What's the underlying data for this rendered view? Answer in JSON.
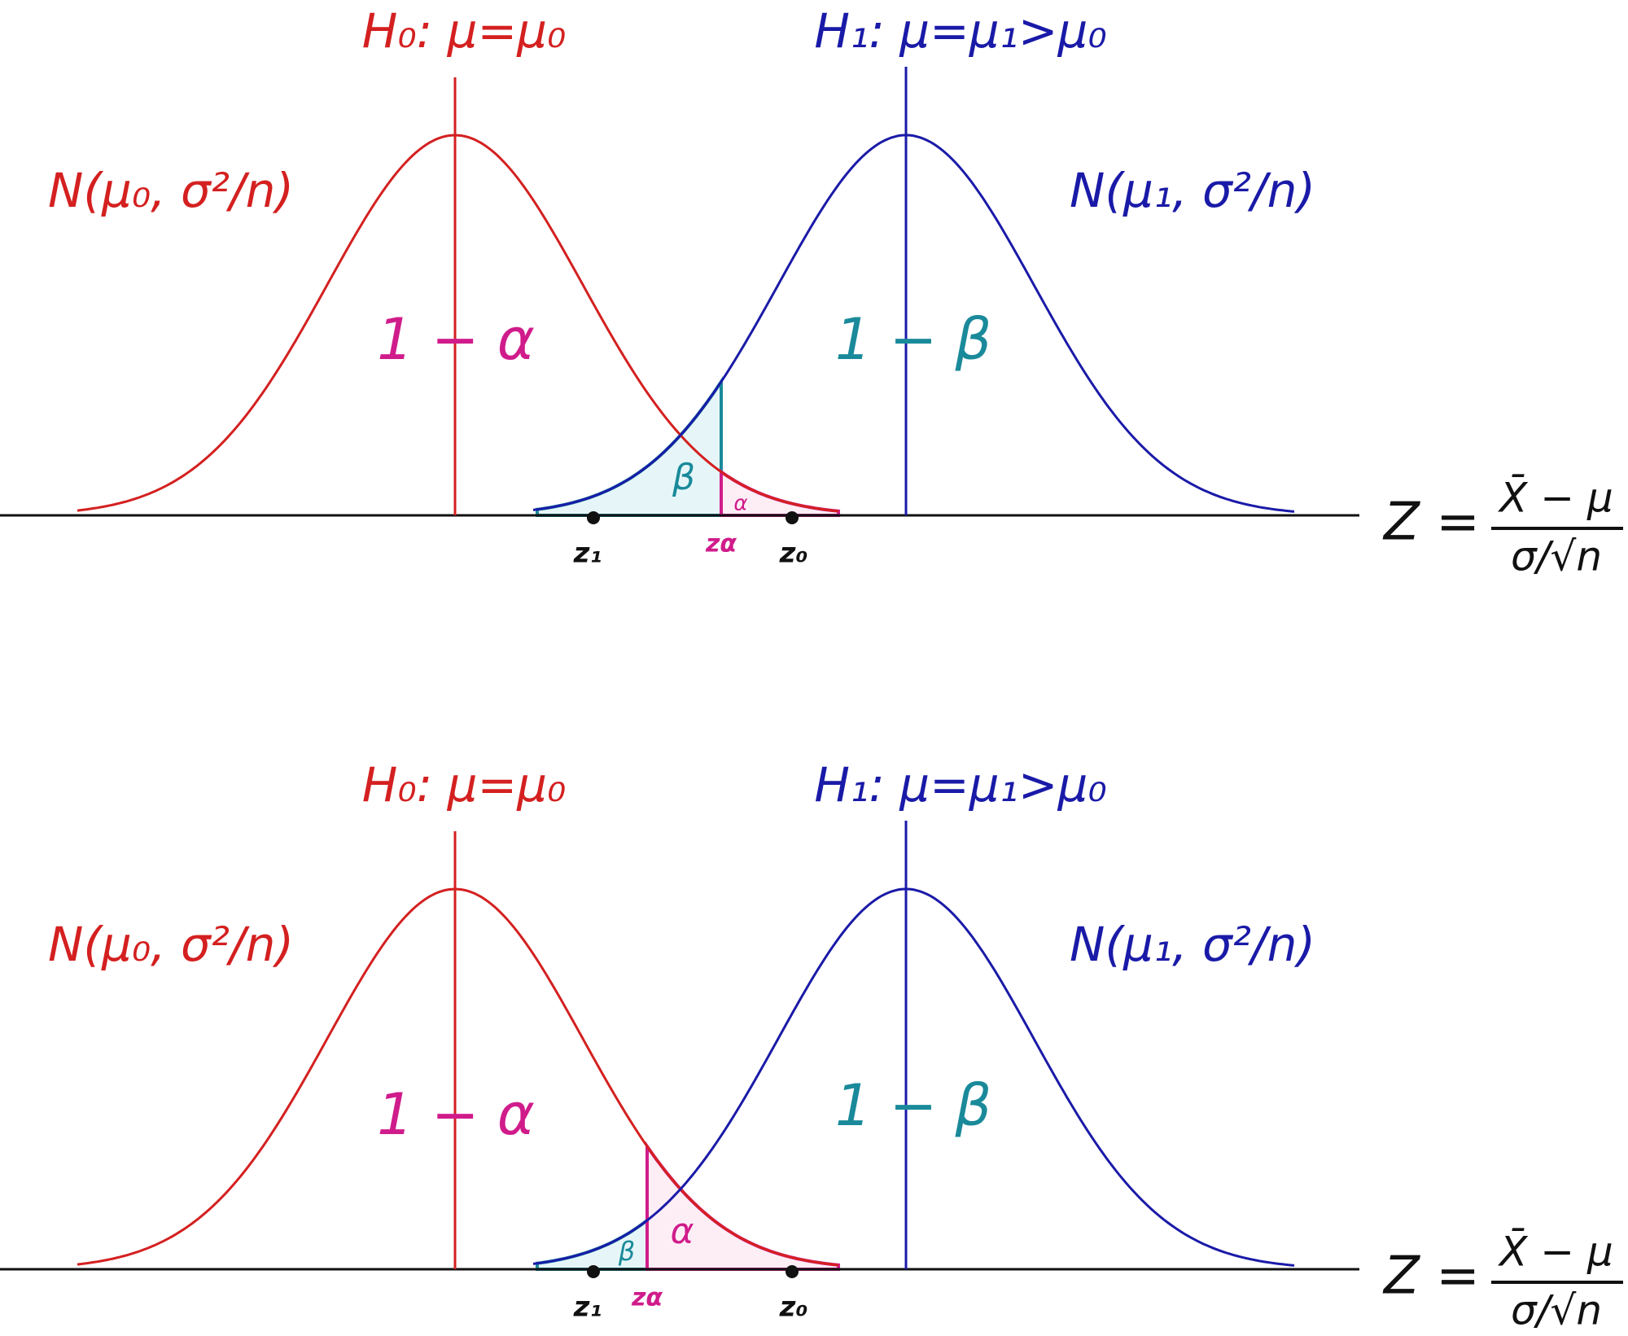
{
  "panels": [
    {
      "h0_label": "H₀: μ=μ₀",
      "h1_label": "H₁: μ=μ₁>μ₀",
      "n0_label": "N(μ₀, σ²/n)",
      "n1_label": "N(μ₁, σ²/n)",
      "region_1_alpha": "1 − α",
      "region_1_beta": "1 − β",
      "beta": "β",
      "alpha": "α",
      "z1": "z₁",
      "z_alpha": "zα",
      "z0": "z₀",
      "axis_label": {
        "lhs": "Z =",
        "numerator": "X̄ − μ",
        "denominator": "σ/√n"
      }
    },
    {
      "h0_label": "H₀: μ=μ₀",
      "h1_label": "H₁: μ=μ₁>μ₀",
      "n0_label": "N(μ₀, σ²/n)",
      "n1_label": "N(μ₁, σ²/n)",
      "region_1_alpha": "1 − α",
      "region_1_beta": "1 − β",
      "beta": "β",
      "alpha": "α",
      "z1": "z₁",
      "z_alpha": "zα",
      "z0": "z₀",
      "axis_label": {
        "lhs": "Z =",
        "numerator": "X̄ − μ",
        "denominator": "σ/√n"
      }
    }
  ]
}
